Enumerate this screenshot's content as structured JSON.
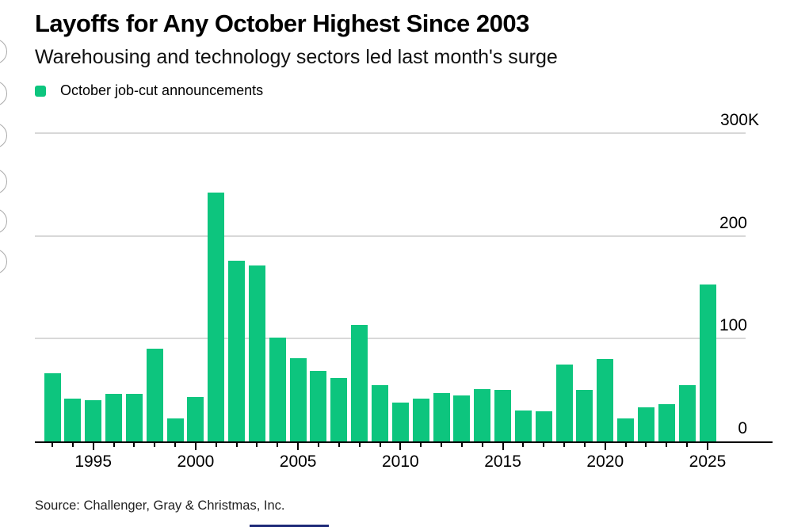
{
  "header": {
    "title": "Layoffs for Any October Highest Since 2003",
    "subtitle": "Warehousing and technology sectors led last month's surge"
  },
  "legend": {
    "label": "October job-cut announcements",
    "swatch_color": "#0dc57e"
  },
  "source": "Source: Challenger, Gray & Christmas, Inc.",
  "colors": {
    "bar": "#0dc57e",
    "gridline": "#d8d8d8",
    "axis": "#000000"
  },
  "share_rail": {
    "buttons": 6
  },
  "chart_data": {
    "type": "bar",
    "title": "Layoffs for Any October Highest Since 2003",
    "subtitle": "Warehousing and technology sectors led last month's surge",
    "series_name": "October job-cut announcements",
    "unit": "job cuts, thousands (K)",
    "categories": [
      1993,
      1994,
      1995,
      1996,
      1997,
      1998,
      1999,
      2000,
      2001,
      2002,
      2003,
      2004,
      2005,
      2006,
      2007,
      2008,
      2009,
      2010,
      2011,
      2012,
      2013,
      2014,
      2015,
      2016,
      2017,
      2018,
      2019,
      2020,
      2021,
      2022,
      2023,
      2024,
      2025
    ],
    "values": [
      66,
      42,
      40,
      46,
      46,
      90,
      22,
      43,
      242,
      176,
      171,
      101,
      81,
      69,
      62,
      113,
      55,
      38,
      42,
      47,
      45,
      51,
      50,
      30,
      29,
      75,
      50,
      80,
      22,
      33,
      36,
      55,
      153
    ],
    "ylim": [
      0,
      300
    ],
    "y_ticks": [
      {
        "value": 300,
        "label": "300K"
      },
      {
        "value": 200,
        "label": "200"
      },
      {
        "value": 100,
        "label": "100"
      },
      {
        "value": 0,
        "label": "0"
      }
    ],
    "x_labeled_years": [
      1995,
      2000,
      2005,
      2010,
      2015,
      2020,
      2025
    ],
    "grid": "horizontal",
    "legend_position": "top-left",
    "source": "Source: Challenger, Gray & Christmas, Inc."
  }
}
